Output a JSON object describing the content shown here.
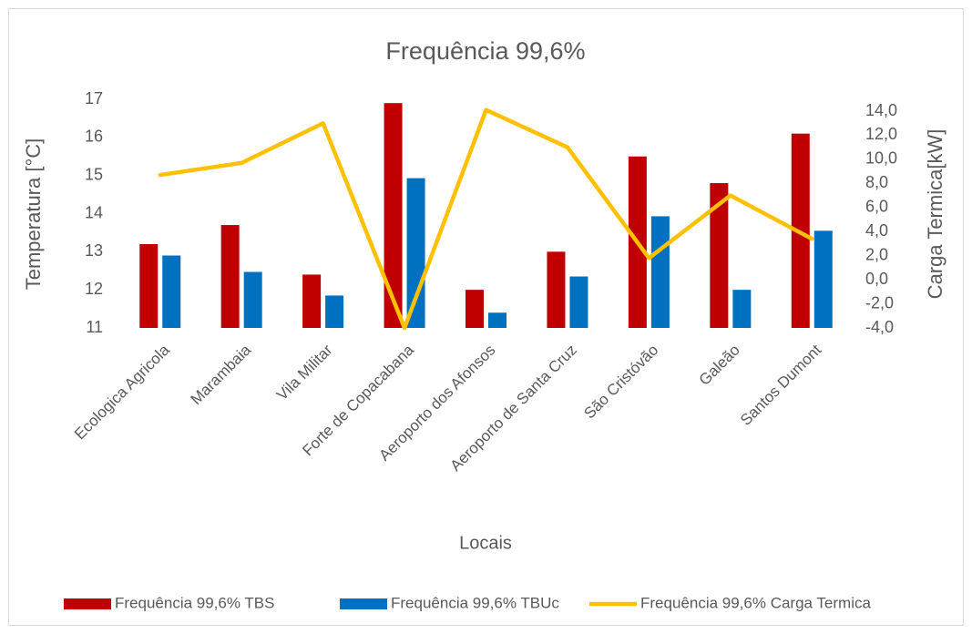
{
  "chart_data": {
    "type": "bar_line",
    "title": "Frequência 99,6%",
    "x_label": "Locais",
    "y_label": "Temperatura [°C]",
    "y2_label": "Carga Termica[kW]",
    "categories": [
      "Ecologica Agricola",
      "Marambaia",
      "Vila Militar",
      "Forte de Copacabana",
      "Aeroporto dos Afonsos",
      "Aeroporto de Santa  Cruz",
      "São Cristóvão",
      "Galeão",
      "Santos Dumont"
    ],
    "series": [
      {
        "name": "Frequência 99,6% TBS",
        "type": "bar",
        "color": "#c00000",
        "values": [
          13.2,
          13.7,
          12.4,
          16.9,
          12.0,
          13.0,
          15.5,
          14.8,
          16.1
        ]
      },
      {
        "name": "Frequência 99,6% TBUc",
        "type": "bar",
        "color": "#0070c0",
        "values": [
          12.9,
          12.47,
          11.85,
          14.93,
          11.4,
          12.35,
          13.93,
          12.0,
          13.55
        ]
      },
      {
        "name": "Frequência 99,6% Carga Termica",
        "type": "line",
        "axis": "y2",
        "color": "#ffc000",
        "values": [
          8.7,
          9.7,
          13.0,
          -4.0,
          14.1,
          11.0,
          1.8,
          7.0,
          3.4
        ]
      }
    ],
    "ylim": [
      11,
      17
    ],
    "yticks": [
      11,
      12,
      13,
      14,
      15,
      16,
      17
    ],
    "y2lim": [
      -4,
      14
    ],
    "y2ticks": [
      {
        "value": -4,
        "label": "-4,0"
      },
      {
        "value": -2,
        "label": "-2,0"
      },
      {
        "value": 0,
        "label": "0,0"
      },
      {
        "value": 2,
        "label": "2,0"
      },
      {
        "value": 4,
        "label": "4,0"
      },
      {
        "value": 6,
        "label": "6,0"
      },
      {
        "value": 8,
        "label": "8,0"
      },
      {
        "value": 10,
        "label": "10,0"
      },
      {
        "value": 12,
        "label": "12,0"
      },
      {
        "value": 14,
        "label": "14,0"
      }
    ],
    "grid": false,
    "legend": "bottom"
  }
}
